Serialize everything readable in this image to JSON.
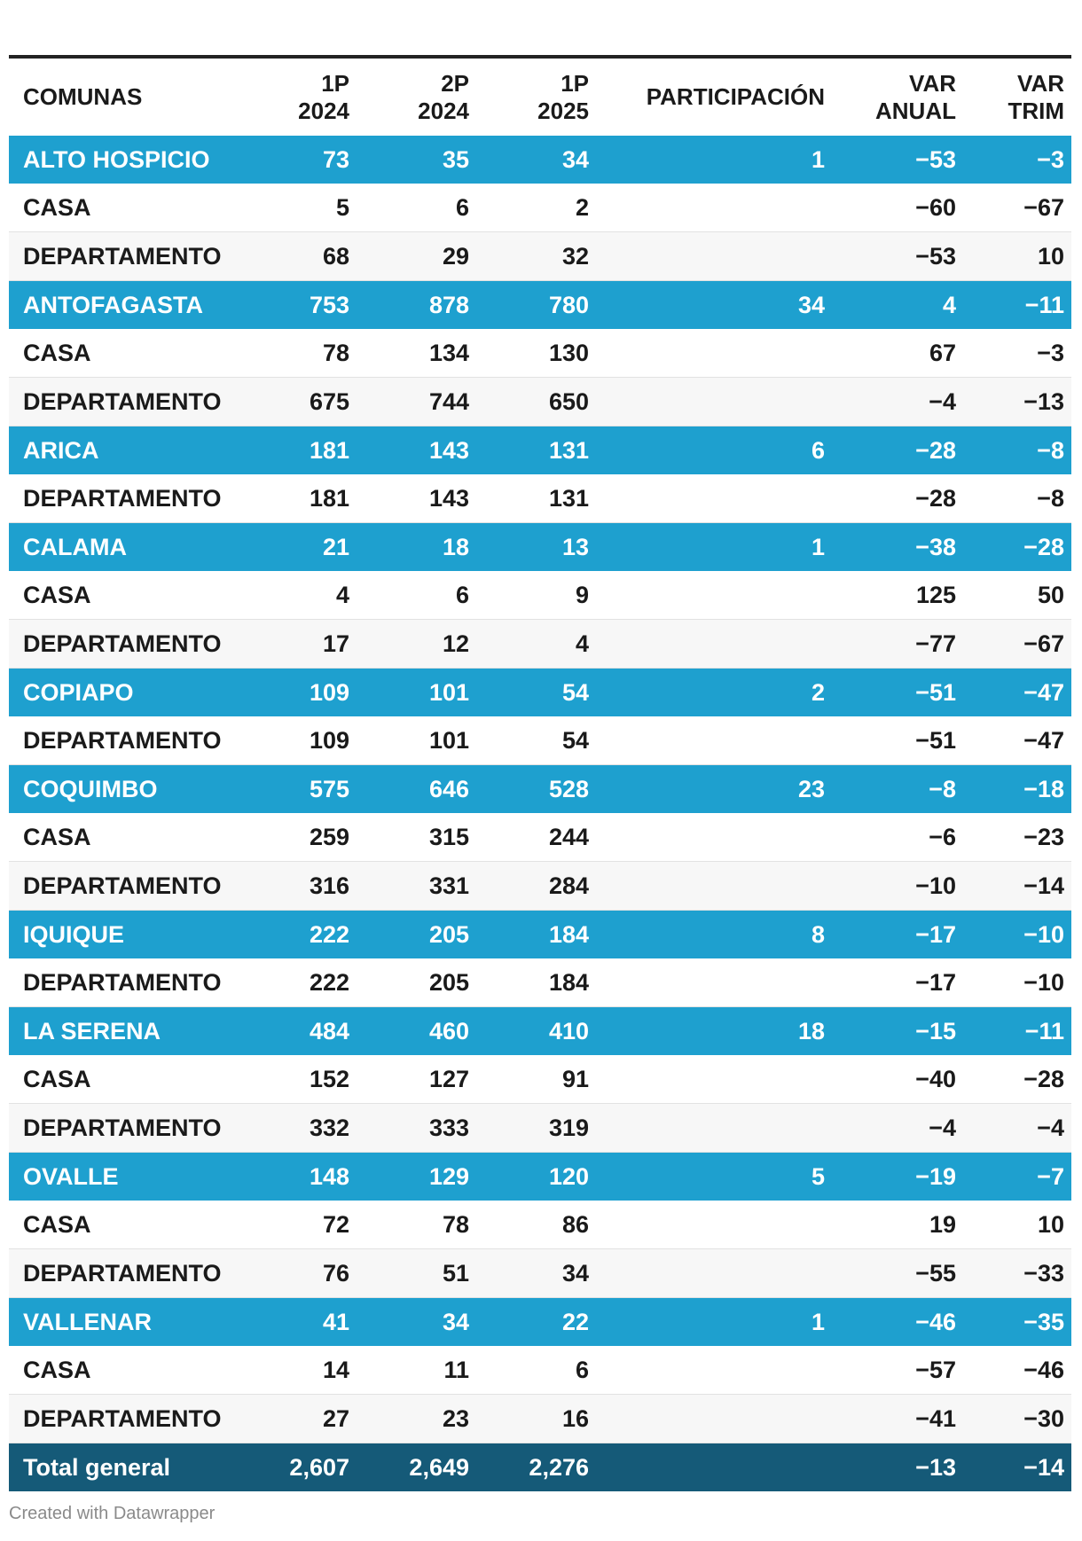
{
  "chart_data": {
    "type": "table",
    "columns": [
      {
        "line1": "COMUNAS",
        "line2": ""
      },
      {
        "line1": "1P",
        "line2": "2024"
      },
      {
        "line1": "2P",
        "line2": "2024"
      },
      {
        "line1": "1P",
        "line2": "2025"
      },
      {
        "line1": "PARTICIPACIÓN",
        "line2": ""
      },
      {
        "line1": "VAR",
        "line2": "ANUAL"
      },
      {
        "line1": "VAR",
        "line2": "TRIM"
      }
    ],
    "rows": [
      {
        "kind": "group",
        "cells": [
          "ALTO HOSPICIO",
          "73",
          "35",
          "34",
          "1",
          "−53",
          "−3"
        ]
      },
      {
        "kind": "sub",
        "cells": [
          "CASA",
          "5",
          "6",
          "2",
          "",
          "−60",
          "−67"
        ]
      },
      {
        "kind": "sub",
        "cells": [
          "DEPARTAMENTO",
          "68",
          "29",
          "32",
          "",
          "−53",
          "10"
        ]
      },
      {
        "kind": "group",
        "cells": [
          "ANTOFAGASTA",
          "753",
          "878",
          "780",
          "34",
          "4",
          "−11"
        ]
      },
      {
        "kind": "sub",
        "cells": [
          "CASA",
          "78",
          "134",
          "130",
          "",
          "67",
          "−3"
        ]
      },
      {
        "kind": "sub",
        "cells": [
          "DEPARTAMENTO",
          "675",
          "744",
          "650",
          "",
          "−4",
          "−13"
        ]
      },
      {
        "kind": "group",
        "cells": [
          "ARICA",
          "181",
          "143",
          "131",
          "6",
          "−28",
          "−8"
        ]
      },
      {
        "kind": "sub",
        "cells": [
          "DEPARTAMENTO",
          "181",
          "143",
          "131",
          "",
          "−28",
          "−8"
        ]
      },
      {
        "kind": "group",
        "cells": [
          "CALAMA",
          "21",
          "18",
          "13",
          "1",
          "−38",
          "−28"
        ]
      },
      {
        "kind": "sub",
        "cells": [
          "CASA",
          "4",
          "6",
          "9",
          "",
          "125",
          "50"
        ]
      },
      {
        "kind": "sub",
        "cells": [
          "DEPARTAMENTO",
          "17",
          "12",
          "4",
          "",
          "−77",
          "−67"
        ]
      },
      {
        "kind": "group",
        "cells": [
          "COPIAPO",
          "109",
          "101",
          "54",
          "2",
          "−51",
          "−47"
        ]
      },
      {
        "kind": "sub",
        "cells": [
          "DEPARTAMENTO",
          "109",
          "101",
          "54",
          "",
          "−51",
          "−47"
        ]
      },
      {
        "kind": "group",
        "cells": [
          "COQUIMBO",
          "575",
          "646",
          "528",
          "23",
          "−8",
          "−18"
        ]
      },
      {
        "kind": "sub",
        "cells": [
          "CASA",
          "259",
          "315",
          "244",
          "",
          "−6",
          "−23"
        ]
      },
      {
        "kind": "sub",
        "cells": [
          "DEPARTAMENTO",
          "316",
          "331",
          "284",
          "",
          "−10",
          "−14"
        ]
      },
      {
        "kind": "group",
        "cells": [
          "IQUIQUE",
          "222",
          "205",
          "184",
          "8",
          "−17",
          "−10"
        ]
      },
      {
        "kind": "sub",
        "cells": [
          "DEPARTAMENTO",
          "222",
          "205",
          "184",
          "",
          "−17",
          "−10"
        ]
      },
      {
        "kind": "group",
        "cells": [
          "LA SERENA",
          "484",
          "460",
          "410",
          "18",
          "−15",
          "−11"
        ]
      },
      {
        "kind": "sub",
        "cells": [
          "CASA",
          "152",
          "127",
          "91",
          "",
          "−40",
          "−28"
        ]
      },
      {
        "kind": "sub",
        "cells": [
          "DEPARTAMENTO",
          "332",
          "333",
          "319",
          "",
          "−4",
          "−4"
        ]
      },
      {
        "kind": "group",
        "cells": [
          "OVALLE",
          "148",
          "129",
          "120",
          "5",
          "−19",
          "−7"
        ]
      },
      {
        "kind": "sub",
        "cells": [
          "CASA",
          "72",
          "78",
          "86",
          "",
          "19",
          "10"
        ]
      },
      {
        "kind": "sub",
        "cells": [
          "DEPARTAMENTO",
          "76",
          "51",
          "34",
          "",
          "−55",
          "−33"
        ]
      },
      {
        "kind": "group",
        "cells": [
          "VALLENAR",
          "41",
          "34",
          "22",
          "1",
          "−46",
          "−35"
        ]
      },
      {
        "kind": "sub",
        "cells": [
          "CASA",
          "14",
          "11",
          "6",
          "",
          "−57",
          "−46"
        ]
      },
      {
        "kind": "sub",
        "cells": [
          "DEPARTAMENTO",
          "27",
          "23",
          "16",
          "",
          "−41",
          "−30"
        ]
      },
      {
        "kind": "total",
        "cells": [
          "Total general",
          "2,607",
          "2,649",
          "2,276",
          "",
          "−13",
          "−14"
        ]
      }
    ]
  },
  "colors": {
    "group_row": "#1ea0cf",
    "total_row": "#155a78",
    "stripe": "#f7f7f7"
  },
  "footer": "Created with Datawrapper"
}
